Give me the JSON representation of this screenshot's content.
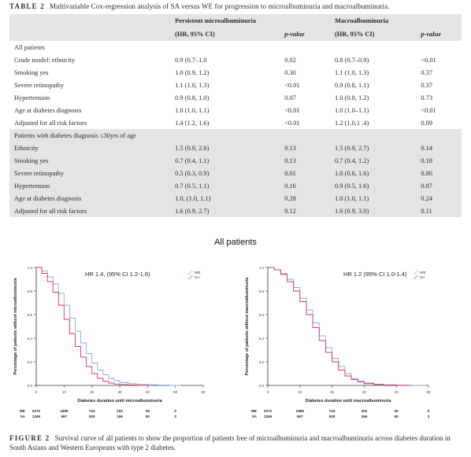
{
  "table": {
    "label": "TABLE 2",
    "caption": "Multivariable Cox-regression analysis of SA versus WE for progression to microalbuminuria and macroalbuminuria.",
    "header": {
      "col1": "",
      "micro_title": "Persistent microalbuminuria",
      "micro_sub": "(HR, 95% CI)",
      "pvalue": "p-value",
      "macro_title": "Macroalbuminuria",
      "macro_sub": "(HR, 95% CI)"
    },
    "sections": [
      {
        "title": "All patients",
        "rows": [
          {
            "label": "Crude model: ethnicity",
            "micro": "0.9 (0.7–1.0",
            "micro_p": "0.02",
            "macro": "0.8 (0.7–0.9)",
            "macro_p": "<0.01"
          },
          {
            "label": "Smoking yes",
            "micro": "1.0 (0.9, 1.2)",
            "micro_p": "0.30",
            "macro": "1.1 (1.0, 1.3)",
            "macro_p": "0.37"
          },
          {
            "label": "Severe retinopathy",
            "micro": "1.1 (1.0, 1.3)",
            "micro_p": "<0.01",
            "macro": "0.9 (0.8, 1.1)",
            "macro_p": "0.37"
          },
          {
            "label": "Hypertension",
            "micro": "0.9 (0.8, 1.0)",
            "micro_p": "0.07",
            "macro": "1.0 (0.8, 1.2)",
            "macro_p": "0.73"
          },
          {
            "label": "Age at diabetes diagnosis",
            "micro": "1.0 (1.0, 1.1)",
            "micro_p": "<0.01",
            "macro": "1.0 (1.0–1.1)",
            "macro_p": "<0.01"
          },
          {
            "label": "Adjusted for all risk factors",
            "micro": "1.4 (1.2, 1.6)",
            "micro_p": "<0.01",
            "macro": "1.2 (1.0,1 .4)",
            "macro_p": "0.09"
          }
        ]
      },
      {
        "title": "Patients with diabetes diagnosis ≤30yrs of age",
        "rows": [
          {
            "label": "Ethnicity",
            "micro": "1.5 (0.9, 2.6)",
            "micro_p": "0.13",
            "macro": "1.5 (0.9, 2.7)",
            "macro_p": "0.14"
          },
          {
            "label": "Smoking yes",
            "micro": "0.7 (0.4, 1.1)",
            "micro_p": "0.13",
            "macro": "0.7 (0.4, 1.2)",
            "macro_p": "0.18"
          },
          {
            "label": "Severe retinopathy",
            "micro": "0.5 (0.3, 0.9)",
            "micro_p": "0.01",
            "macro": "1.0 (0.6, 1.6)",
            "macro_p": "0.86"
          },
          {
            "label": "Hypertension",
            "micro": "0.7 (0.5, 1.1)",
            "micro_p": "0.16",
            "macro": "0.9 (0.5, 1.6)",
            "macro_p": "0.87"
          },
          {
            "label": "Age at diabetes diagnosis",
            "micro": "1.0, (1.0, 1.1)",
            "micro_p": "0.28",
            "macro": "1.0 (1.0, 1.1)",
            "macro_p": "0.24"
          },
          {
            "label": "Adjusted for all risk factors",
            "micro": "1.6 (0.9, 2.7)",
            "micro_p": "0.12",
            "macro": "1.6 (0.9, 3.0)",
            "macro_p": "0.11"
          }
        ]
      }
    ]
  },
  "figure": {
    "title": "All patients",
    "label": "FIGURE 2",
    "caption": "Survival curve of all patients to show the proportion of patients free of microalbuminuria and macroalbuminuria across diabetes duration in South Asians and Western Europeans with type 2 diabetes.",
    "colors": {
      "WE": "#8fa8e0",
      "SA": "#d6336c"
    }
  },
  "chart_data": [
    {
      "type": "line",
      "hr_annotation": "HR 1.4, (95% CI 1.2-1.6)",
      "ylabel": "Percentage of patients without microalbuminuria",
      "xlabel": "Diabetes duration until microalbuminuria",
      "xlim": [
        0,
        60
      ],
      "ylim": [
        0,
        1.0
      ],
      "xticks": [
        "0",
        "10",
        "20",
        "30",
        "40",
        "50",
        "60"
      ],
      "yticks": [
        "0.0",
        "0.2",
        "0.4",
        "0.6",
        "0.8",
        "1.0"
      ],
      "legend": [
        "WE",
        "SA"
      ],
      "series": [
        {
          "name": "WE",
          "x": [
            0,
            2,
            4,
            6,
            8,
            10,
            12,
            14,
            16,
            18,
            20,
            22,
            24,
            26,
            28,
            30,
            33,
            36,
            40,
            44,
            48
          ],
          "y": [
            1.0,
            0.97,
            0.92,
            0.86,
            0.78,
            0.68,
            0.57,
            0.46,
            0.36,
            0.27,
            0.19,
            0.13,
            0.09,
            0.06,
            0.04,
            0.025,
            0.015,
            0.01,
            0.005,
            0.003,
            0.0
          ]
        },
        {
          "name": "SA",
          "x": [
            0,
            2,
            4,
            6,
            8,
            10,
            12,
            14,
            16,
            18,
            20,
            22,
            24,
            26,
            28,
            30,
            33,
            36
          ],
          "y": [
            1.0,
            0.95,
            0.88,
            0.79,
            0.68,
            0.56,
            0.44,
            0.33,
            0.24,
            0.16,
            0.1,
            0.06,
            0.035,
            0.02,
            0.012,
            0.008,
            0.004,
            0.0
          ]
        }
      ],
      "risk_table": {
        "groups": [
          "WE",
          "SA"
        ],
        "counts": [
          [
            "2272",
            "1589",
            "744",
            "203",
            "35",
            "0"
          ],
          [
            "1269",
            "997",
            "530",
            "196",
            "50",
            "3"
          ]
        ]
      }
    },
    {
      "type": "line",
      "hr_annotation": "HR 1.2 (95% CI 1.0-1.4)",
      "ylabel": "Percentage of patients without macroalbuminuria",
      "xlabel": "Diabetes duration until macroalbuminuria",
      "xlim": [
        0,
        50
      ],
      "ylim": [
        0,
        1.0
      ],
      "xticks": [
        "0",
        "10",
        "20",
        "30",
        "40",
        "50"
      ],
      "yticks": [
        "0.0",
        "0.2",
        "0.4",
        "0.6",
        "0.8",
        "1.0"
      ],
      "legend": [
        "WE",
        "SA"
      ],
      "series": [
        {
          "name": "WE",
          "x": [
            0,
            2,
            4,
            6,
            8,
            10,
            12,
            14,
            16,
            18,
            20,
            22,
            24,
            26,
            28,
            30,
            33,
            36,
            40,
            45
          ],
          "y": [
            1.0,
            0.98,
            0.95,
            0.9,
            0.83,
            0.74,
            0.64,
            0.53,
            0.42,
            0.32,
            0.23,
            0.16,
            0.1,
            0.06,
            0.035,
            0.02,
            0.01,
            0.005,
            0.002,
            0.0
          ]
        },
        {
          "name": "SA",
          "x": [
            0,
            2,
            4,
            6,
            8,
            10,
            12,
            14,
            16,
            18,
            20,
            22,
            24,
            26,
            28,
            30,
            33,
            36,
            40
          ],
          "y": [
            1.0,
            0.98,
            0.94,
            0.88,
            0.8,
            0.71,
            0.6,
            0.49,
            0.38,
            0.28,
            0.2,
            0.13,
            0.08,
            0.05,
            0.03,
            0.015,
            0.008,
            0.003,
            0.0
          ]
        }
      ],
      "risk_table": {
        "groups": [
          "WE",
          "SA"
        ],
        "counts": [
          [
            "2272",
            "1589",
            "744",
            "203",
            "35",
            "0"
          ],
          [
            "1269",
            "997",
            "530",
            "196",
            "50",
            "3"
          ]
        ]
      }
    }
  ]
}
